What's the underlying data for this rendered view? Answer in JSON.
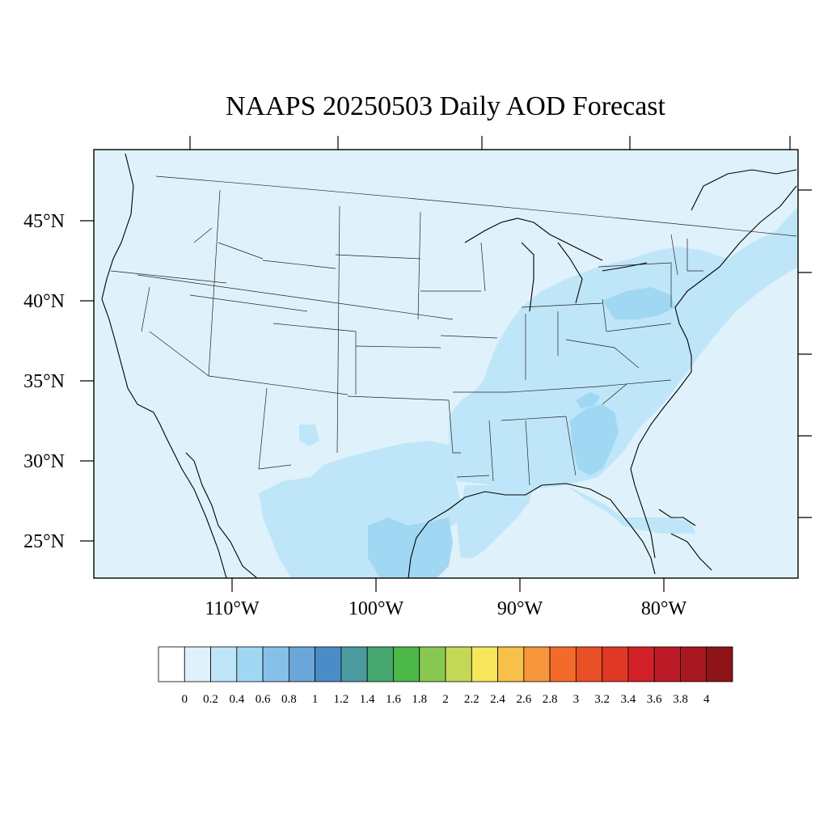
{
  "title": "NAAPS 20250503 Daily AOD Forecast",
  "lat_labels": [
    "45°N",
    "40°N",
    "35°N",
    "30°N",
    "25°N"
  ],
  "lon_labels": [
    "110°W",
    "100°W",
    "90°W",
    "80°W"
  ],
  "colorbar": {
    "labels": [
      "0",
      "0.2",
      "0.4",
      "0.6",
      "0.8",
      "1",
      "1.2",
      "1.4",
      "1.6",
      "1.8",
      "2",
      "2.2",
      "2.4",
      "2.6",
      "2.8",
      "3",
      "3.2",
      "3.4",
      "3.6",
      "3.8",
      "4"
    ],
    "colors": [
      "#ffffff",
      "#dff2fb",
      "#bfe6f8",
      "#a0d8f3",
      "#86c0e8",
      "#6aa6da",
      "#4a8cc8",
      "#4a9aa0",
      "#46a66e",
      "#4cb848",
      "#88c850",
      "#c4d858",
      "#f6e65c",
      "#f8c048",
      "#f7963c",
      "#f46a2a",
      "#ea5026",
      "#e03826",
      "#d32028",
      "#bc1a26",
      "#a81820",
      "#8e1418"
    ]
  },
  "aod_regions": [
    {
      "name": "background",
      "color": "#dff2fb"
    },
    {
      "name": "eastern-us-band",
      "color": "#bfe6f8"
    },
    {
      "name": "southern-texas-mexico",
      "color": "#bfe6f8"
    },
    {
      "name": "georgia-alabama-high",
      "color": "#a0d8f3"
    },
    {
      "name": "pennsylvania-high",
      "color": "#a0d8f3"
    },
    {
      "name": "south-texas-high",
      "color": "#a0d8f3"
    }
  ]
}
